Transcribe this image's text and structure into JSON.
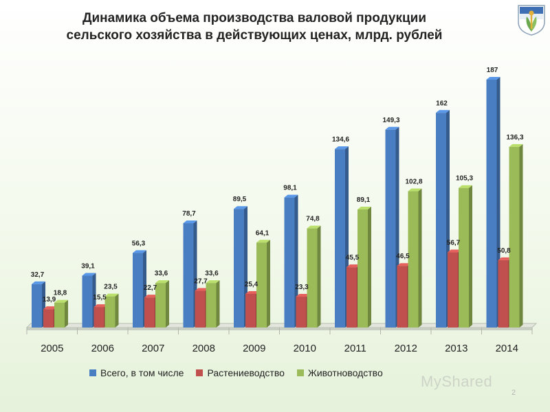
{
  "slide": {
    "title_line1": "Динамика объема производства валовой продукции",
    "title_line2": "сельского хозяйства в действующих ценах, млрд. рублей",
    "page_number": "2",
    "watermark_text": "MyShared"
  },
  "legend": {
    "items": [
      {
        "label": "Всего, в том числе",
        "color": "#4a7ec2"
      },
      {
        "label": "Растениеводство",
        "color": "#c0504d"
      },
      {
        "label": "Животноводство",
        "color": "#9bbb59"
      }
    ]
  },
  "chart_data": {
    "type": "bar",
    "title": "Динамика объема производства валовой продукции сельского хозяйства в действующих ценах, млрд. рублей",
    "categories": [
      "2005",
      "2006",
      "2007",
      "2008",
      "2009",
      "2010",
      "2011",
      "2012",
      "2013",
      "2014"
    ],
    "series": [
      {
        "name": "Всего, в том числе",
        "color": "#4a7ec2",
        "values": [
          32.7,
          39.1,
          56.3,
          78.7,
          89.5,
          98.1,
          134.6,
          149.3,
          162,
          187
        ],
        "labels": [
          "32,7",
          "39,1",
          "56,3",
          "78,7",
          "89,5",
          "98,1",
          "134,6",
          "149,3",
          "162",
          "187"
        ]
      },
      {
        "name": "Растениеводство",
        "color": "#c0504d",
        "values": [
          13.9,
          15.5,
          22.7,
          27.7,
          25.4,
          23.3,
          45.5,
          46.5,
          56.7,
          50.8
        ],
        "labels": [
          "13,9",
          "15,5",
          "22,7",
          "27,7",
          "25,4",
          "23,3",
          "45,5",
          "46,5",
          "56,7",
          "50,8"
        ]
      },
      {
        "name": "Животноводство",
        "color": "#9bbb59",
        "values": [
          18.8,
          23.5,
          33.6,
          33.6,
          64.1,
          74.8,
          89.1,
          102.8,
          105.3,
          136.3
        ],
        "labels": [
          "18,8",
          "23,5",
          "33,6",
          "33,6",
          "64,1",
          "74,8",
          "89,1",
          "102,8",
          "105,3",
          "136,3"
        ]
      }
    ],
    "ylim": [
      0,
      187
    ],
    "grid": false,
    "legend_position": "bottom"
  }
}
